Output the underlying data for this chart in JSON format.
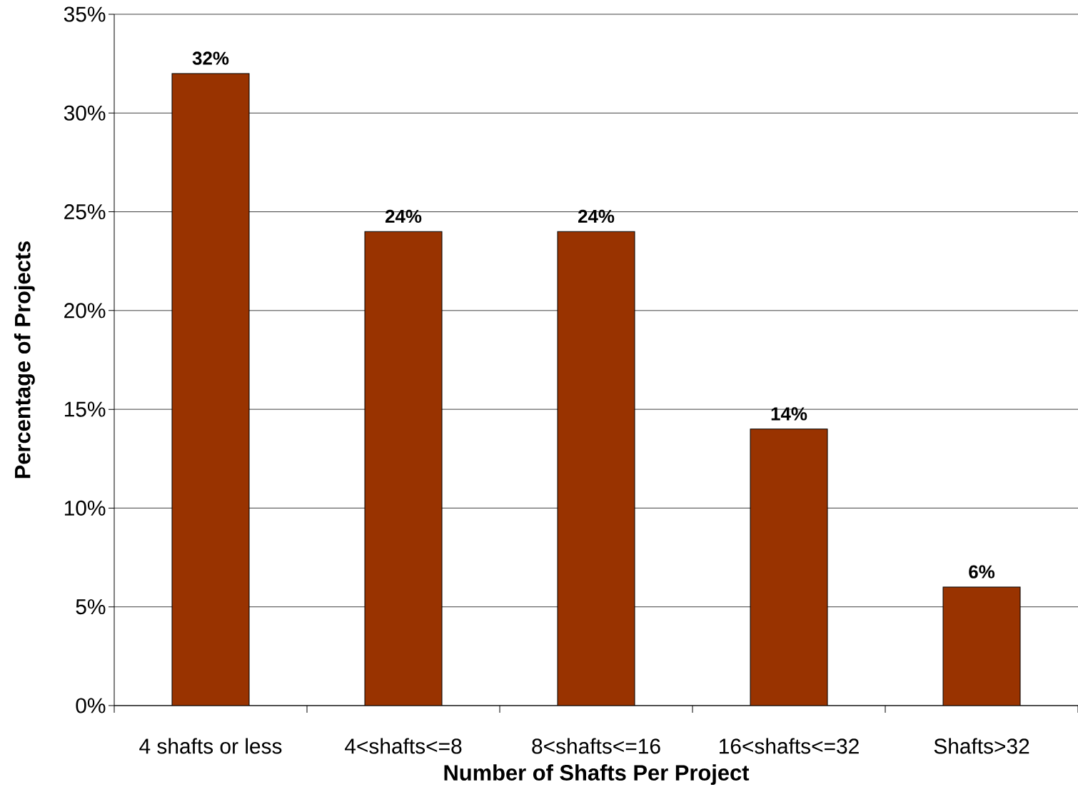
{
  "chart_data": {
    "type": "bar",
    "xlabel": "Number of Shafts Per Project",
    "ylabel": "Percentage of Projects",
    "categories": [
      "4 shafts or less",
      "4<shafts<=8",
      "8<shafts<=16",
      "16<shafts<=32",
      "Shafts>32"
    ],
    "values": [
      32,
      24,
      24,
      14,
      6
    ],
    "value_labels": [
      "32%",
      "24%",
      "24%",
      "14%",
      "6%"
    ],
    "color": "#993300",
    "ylim": [
      0,
      35
    ],
    "yticks": [
      {
        "value": 0,
        "label": "0%"
      },
      {
        "value": 5,
        "label": "5%"
      },
      {
        "value": 10,
        "label": "10%"
      },
      {
        "value": 15,
        "label": "15%"
      },
      {
        "value": 20,
        "label": "20%"
      },
      {
        "value": 25,
        "label": "25%"
      },
      {
        "value": 30,
        "label": "30%"
      },
      {
        "value": 35,
        "label": "35%"
      }
    ],
    "grid": "y"
  }
}
